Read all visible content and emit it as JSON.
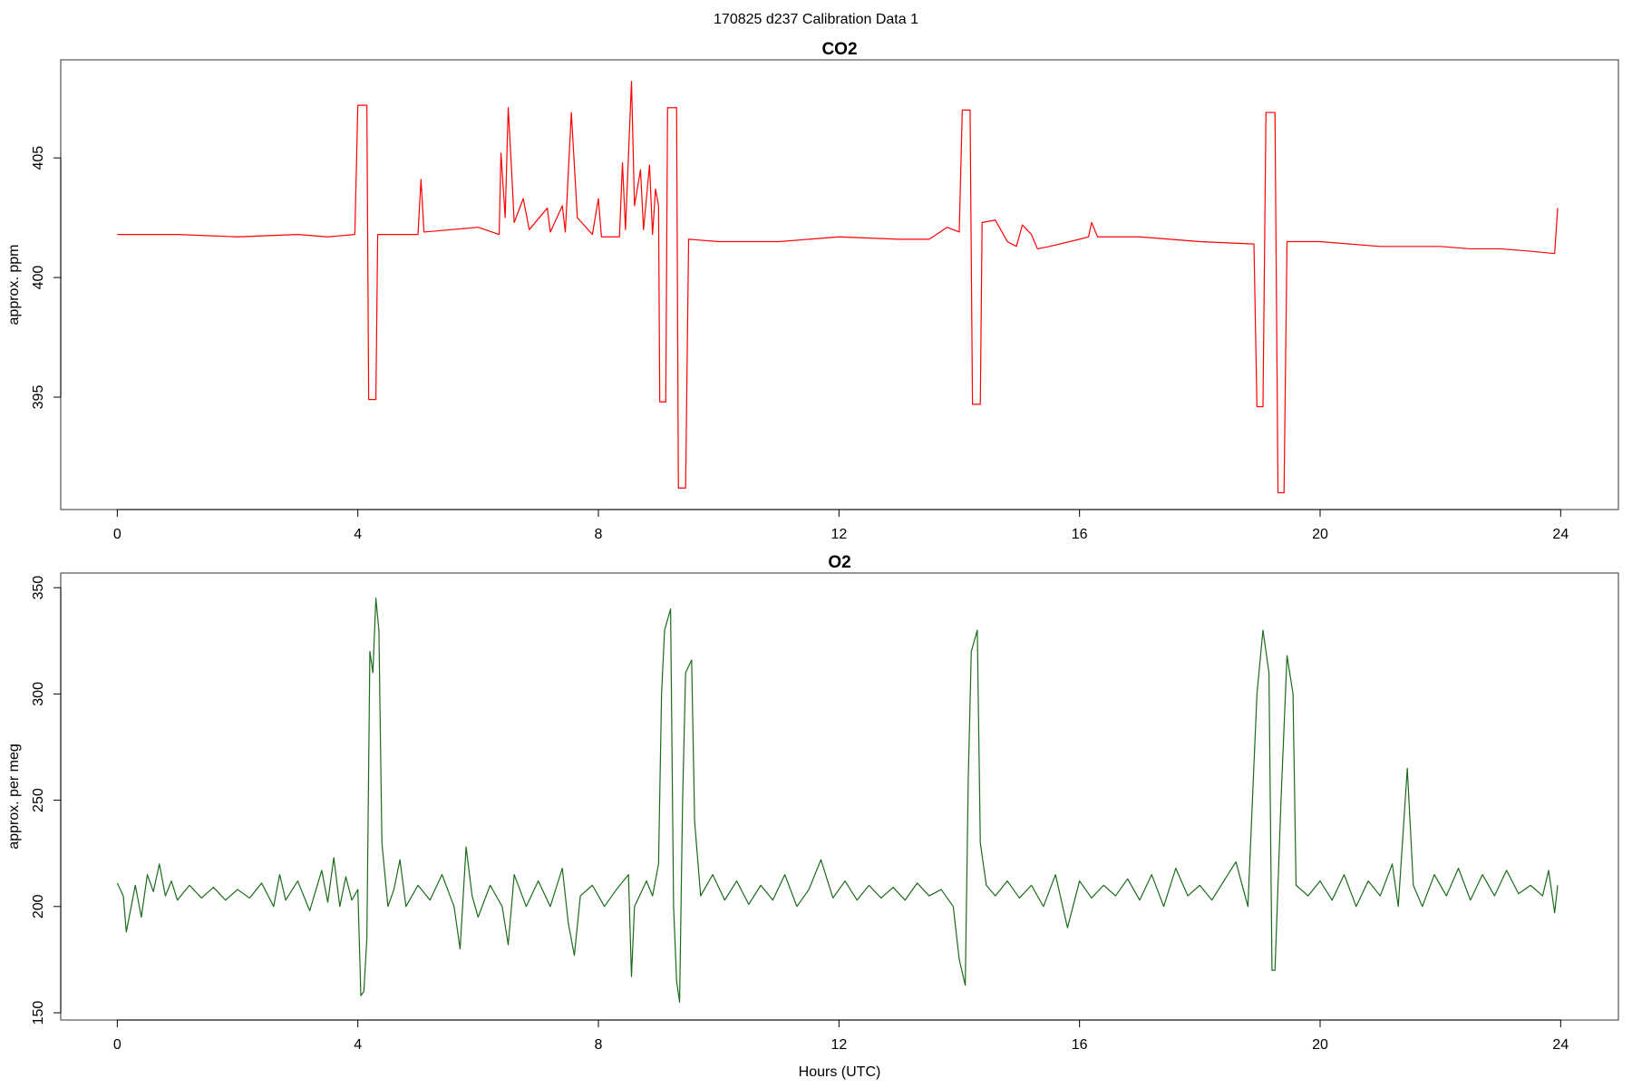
{
  "page_title": "170825   d237   Calibration Data 1",
  "chart_data": [
    {
      "type": "line",
      "title": "CO2",
      "ylabel": "approx. ppm",
      "xlim": [
        -0.94,
        24.96
      ],
      "xticks": [
        0,
        4,
        8,
        12,
        16,
        20,
        24
      ],
      "ylim": [
        390.3,
        409.1
      ],
      "yticks": [
        395,
        400,
        405
      ],
      "color": "#ff0000",
      "x": [
        0,
        0.5,
        1,
        2,
        3,
        3.5,
        3.95,
        4.0,
        4.15,
        4.18,
        4.3,
        4.33,
        5.0,
        5.05,
        5.1,
        6.0,
        6.35,
        6.38,
        6.45,
        6.5,
        6.55,
        6.6,
        6.75,
        6.85,
        7.15,
        7.2,
        7.4,
        7.45,
        7.55,
        7.65,
        7.9,
        8.0,
        8.05,
        8.35,
        8.4,
        8.45,
        8.55,
        8.6,
        8.7,
        8.75,
        8.85,
        8.9,
        8.95,
        9.0,
        9.02,
        9.12,
        9.15,
        9.3,
        9.33,
        9.45,
        9.5,
        10,
        11,
        12,
        13,
        13.5,
        13.8,
        14.0,
        14.05,
        14.18,
        14.22,
        14.35,
        14.38,
        14.6,
        14.8,
        14.95,
        15.05,
        15.2,
        15.3,
        15.5,
        16.0,
        16.15,
        16.2,
        16.3,
        17,
        18,
        18.9,
        18.95,
        19.05,
        19.1,
        19.25,
        19.3,
        19.4,
        19.45,
        20,
        21,
        22,
        22.5,
        23,
        23.5,
        23.9,
        23.95
      ],
      "values": [
        401.8,
        401.8,
        401.8,
        401.7,
        401.8,
        401.7,
        401.8,
        407.2,
        407.2,
        394.9,
        394.9,
        401.8,
        401.8,
        404.1,
        401.9,
        402.1,
        401.8,
        405.2,
        402.5,
        407.1,
        404.8,
        402.3,
        403.3,
        402.0,
        402.9,
        401.9,
        403.0,
        401.9,
        406.9,
        402.5,
        401.8,
        403.3,
        401.7,
        401.7,
        404.8,
        402.0,
        408.2,
        403.0,
        404.5,
        402.0,
        404.7,
        401.8,
        403.7,
        403.0,
        394.8,
        394.8,
        407.1,
        407.1,
        391.2,
        391.2,
        401.6,
        401.5,
        401.5,
        401.7,
        401.6,
        401.6,
        402.1,
        401.9,
        407.0,
        407.0,
        394.7,
        394.7,
        402.3,
        402.4,
        401.5,
        401.3,
        402.2,
        401.8,
        401.2,
        401.3,
        401.6,
        401.7,
        402.3,
        401.7,
        401.7,
        401.5,
        401.4,
        394.6,
        394.6,
        406.9,
        406.9,
        391.0,
        391.0,
        401.5,
        401.5,
        401.3,
        401.3,
        401.2,
        401.2,
        401.1,
        401.0,
        402.9
      ]
    },
    {
      "type": "line",
      "title": "O2",
      "ylabel": "approx. per meg",
      "xlabel": "Hours (UTC)",
      "xlim": [
        -0.94,
        24.96
      ],
      "xticks": [
        0,
        4,
        8,
        12,
        16,
        20,
        24
      ],
      "ylim": [
        146.6,
        356.9
      ],
      "yticks": [
        150,
        200,
        250,
        300,
        350
      ],
      "color": "#1a6b1a",
      "x": [
        0,
        0.1,
        0.15,
        0.3,
        0.4,
        0.5,
        0.6,
        0.7,
        0.8,
        0.9,
        1.0,
        1.2,
        1.4,
        1.6,
        1.8,
        2.0,
        2.2,
        2.4,
        2.6,
        2.7,
        2.8,
        3.0,
        3.2,
        3.4,
        3.5,
        3.6,
        3.7,
        3.8,
        3.9,
        4.0,
        4.05,
        4.1,
        4.15,
        4.2,
        4.25,
        4.3,
        4.35,
        4.4,
        4.5,
        4.6,
        4.7,
        4.8,
        5.0,
        5.2,
        5.4,
        5.6,
        5.7,
        5.8,
        5.9,
        6.0,
        6.2,
        6.4,
        6.5,
        6.6,
        6.8,
        7.0,
        7.2,
        7.4,
        7.5,
        7.6,
        7.7,
        7.9,
        8.1,
        8.3,
        8.5,
        8.55,
        8.6,
        8.8,
        8.9,
        9.0,
        9.05,
        9.1,
        9.2,
        9.25,
        9.3,
        9.35,
        9.4,
        9.45,
        9.55,
        9.6,
        9.7,
        9.9,
        10.1,
        10.3,
        10.5,
        10.7,
        10.9,
        11.1,
        11.3,
        11.5,
        11.7,
        11.9,
        12.1,
        12.3,
        12.5,
        12.7,
        12.9,
        13.1,
        13.3,
        13.5,
        13.7,
        13.9,
        14.0,
        14.1,
        14.15,
        14.2,
        14.3,
        14.35,
        14.45,
        14.6,
        14.8,
        15.0,
        15.2,
        15.4,
        15.6,
        15.8,
        16.0,
        16.2,
        16.4,
        16.6,
        16.8,
        17.0,
        17.2,
        17.4,
        17.6,
        17.8,
        18.0,
        18.2,
        18.4,
        18.6,
        18.8,
        18.95,
        19.05,
        19.15,
        19.2,
        19.25,
        19.35,
        19.45,
        19.55,
        19.6,
        19.8,
        20.0,
        20.2,
        20.4,
        20.6,
        20.8,
        21.0,
        21.2,
        21.3,
        21.45,
        21.55,
        21.7,
        21.9,
        22.1,
        22.3,
        22.5,
        22.7,
        22.9,
        23.1,
        23.3,
        23.5,
        23.7,
        23.8,
        23.9,
        23.95
      ],
      "values": [
        211,
        205,
        188,
        210,
        195,
        215,
        207,
        220,
        205,
        212,
        203,
        210,
        204,
        209,
        203,
        208,
        204,
        211,
        200,
        215,
        203,
        212,
        198,
        217,
        202,
        223,
        200,
        214,
        203,
        208,
        158,
        160,
        185,
        320,
        310,
        345,
        330,
        230,
        200,
        208,
        222,
        200,
        210,
        203,
        215,
        200,
        180,
        228,
        205,
        195,
        210,
        200,
        182,
        215,
        200,
        212,
        200,
        218,
        192,
        177,
        205,
        210,
        200,
        208,
        215,
        167,
        200,
        212,
        205,
        220,
        300,
        330,
        340,
        200,
        165,
        155,
        250,
        310,
        316,
        240,
        205,
        215,
        203,
        212,
        201,
        210,
        203,
        215,
        200,
        208,
        222,
        204,
        212,
        203,
        210,
        204,
        209,
        203,
        211,
        205,
        208,
        200,
        175,
        163,
        260,
        320,
        330,
        230,
        210,
        205,
        212,
        204,
        210,
        200,
        215,
        190,
        212,
        204,
        210,
        205,
        213,
        203,
        215,
        200,
        218,
        205,
        210,
        203,
        212,
        221,
        200,
        300,
        330,
        310,
        170,
        170,
        250,
        318,
        300,
        210,
        205,
        212,
        203,
        215,
        200,
        212,
        205,
        220,
        200,
        265,
        210,
        200,
        215,
        205,
        218,
        203,
        215,
        205,
        217,
        206,
        210,
        205,
        217,
        197,
        210
      ]
    }
  ]
}
